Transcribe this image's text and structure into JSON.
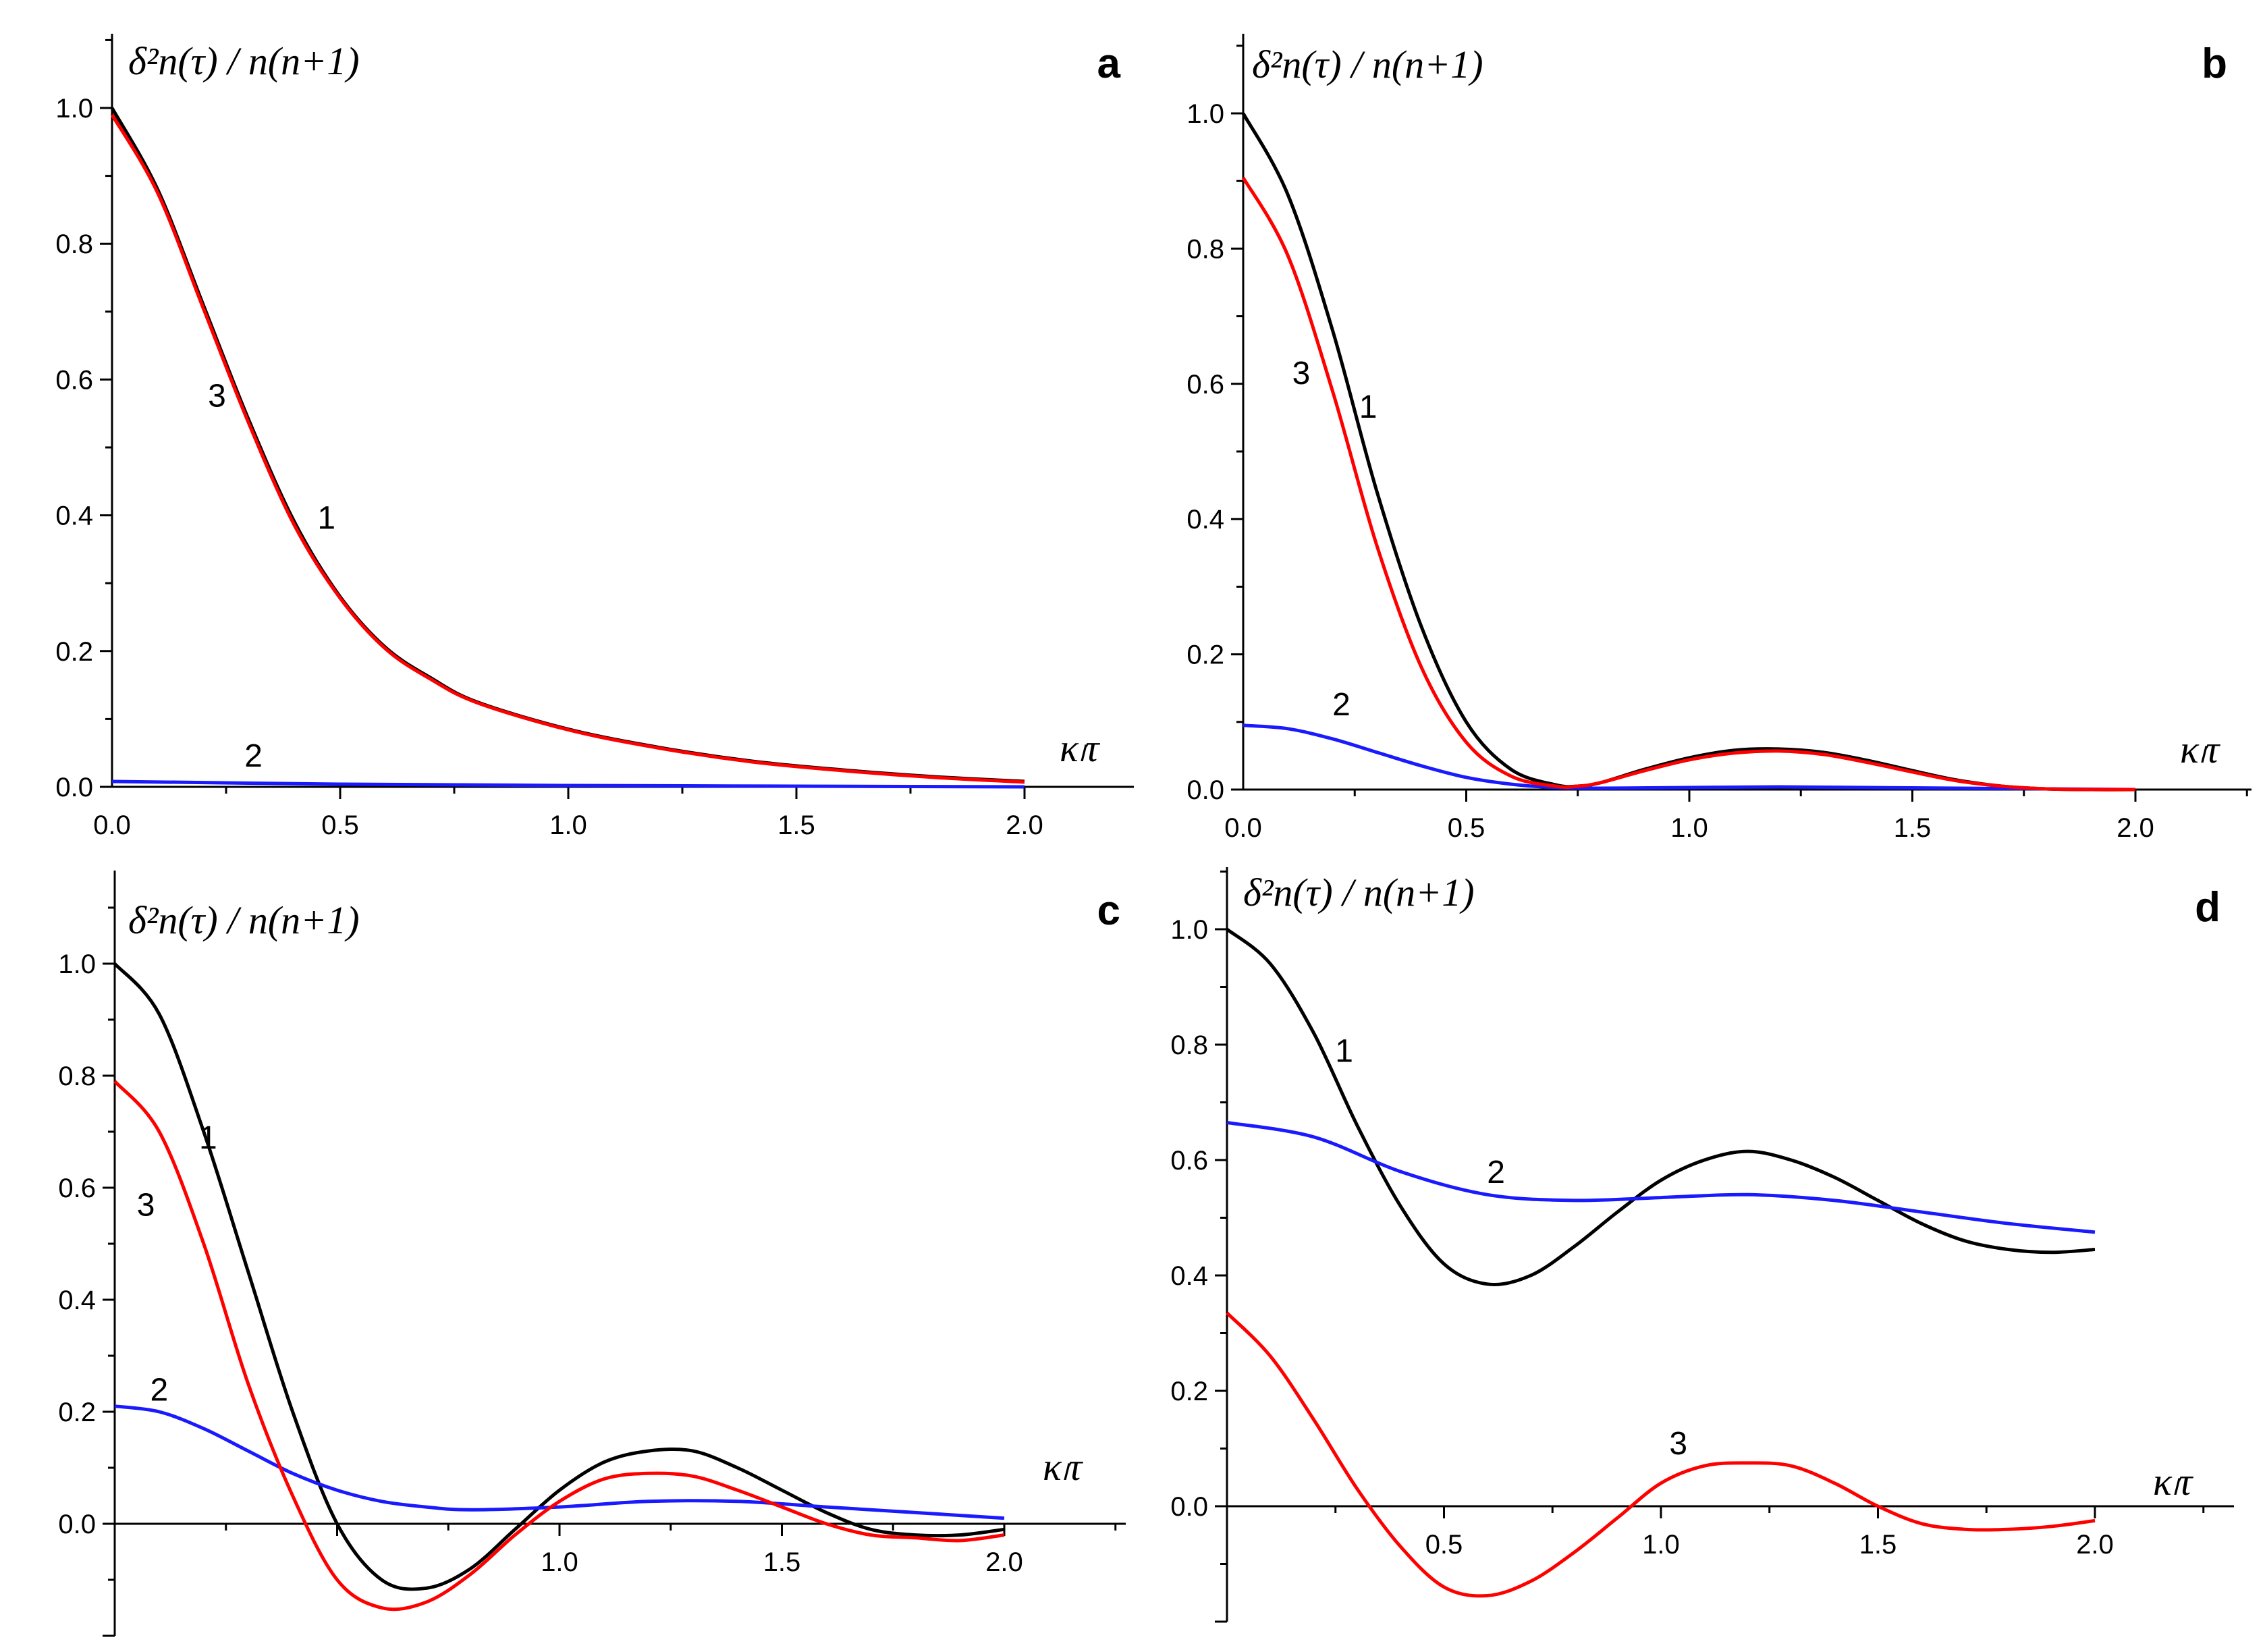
{
  "chart_data": [
    {
      "panel": "a",
      "type": "line",
      "ylabel": "δ²n(τ) / n(n+1)",
      "xlabel": "κₗτ",
      "xlim": [
        0,
        2.2
      ],
      "ylim": [
        0,
        1.1
      ],
      "x_ticks": [
        "0.0",
        "0.5",
        "1.0",
        "1.5",
        "2.0"
      ],
      "y_ticks": [
        "0.0",
        "0.2",
        "0.4",
        "0.6",
        "0.8",
        "1.0"
      ],
      "colors": {
        "1": "#000000",
        "2": "#1a1aff",
        "3": "#ff0000"
      },
      "series": [
        {
          "name": "1",
          "x": [
            0,
            0.1,
            0.2,
            0.3,
            0.4,
            0.5,
            0.6,
            0.7,
            0.8,
            1.0,
            1.2,
            1.4,
            1.6,
            1.8,
            2.0
          ],
          "values": [
            1.0,
            0.88,
            0.71,
            0.54,
            0.39,
            0.28,
            0.205,
            0.16,
            0.125,
            0.085,
            0.058,
            0.038,
            0.025,
            0.015,
            0.008
          ]
        },
        {
          "name": "2",
          "x": [
            0,
            0.5,
            1.0,
            1.5,
            2.0
          ],
          "values": [
            0.008,
            0.004,
            0.002,
            0.001,
            0.0
          ]
        },
        {
          "name": "3",
          "x": [
            0,
            0.1,
            0.2,
            0.3,
            0.4,
            0.5,
            0.6,
            0.7,
            0.8,
            1.0,
            1.2,
            1.4,
            1.6,
            1.8,
            2.0
          ],
          "values": [
            0.99,
            0.875,
            0.705,
            0.535,
            0.385,
            0.278,
            0.203,
            0.158,
            0.124,
            0.084,
            0.057,
            0.037,
            0.024,
            0.014,
            0.007
          ]
        }
      ],
      "curve_labels": [
        {
          "text": "3",
          "x": 0.23,
          "y": 0.56
        },
        {
          "text": "1",
          "x": 0.47,
          "y": 0.38
        },
        {
          "text": "2",
          "x": 0.31,
          "y": 0.03
        }
      ]
    },
    {
      "panel": "b",
      "type": "line",
      "ylabel": "δ²n(τ) / n(n+1)",
      "xlabel": "κₗτ",
      "xlim": [
        0,
        2.2
      ],
      "ylim": [
        0,
        1.1
      ],
      "x_ticks": [
        "0.0",
        "0.5",
        "1.0",
        "1.5",
        "2.0"
      ],
      "y_ticks": [
        "0.0",
        "0.2",
        "0.4",
        "0.6",
        "0.8",
        "1.0"
      ],
      "colors": {
        "1": "#000000",
        "2": "#1a1aff",
        "3": "#ff0000"
      },
      "series": [
        {
          "name": "1",
          "x": [
            0,
            0.1,
            0.2,
            0.3,
            0.4,
            0.5,
            0.6,
            0.7,
            0.75,
            0.8,
            0.9,
            1.0,
            1.1,
            1.2,
            1.3,
            1.4,
            1.5,
            1.6,
            1.7,
            1.8,
            1.9,
            2.0
          ],
          "values": [
            1.0,
            0.88,
            0.68,
            0.44,
            0.24,
            0.1,
            0.03,
            0.007,
            0.005,
            0.01,
            0.03,
            0.047,
            0.058,
            0.06,
            0.055,
            0.043,
            0.028,
            0.014,
            0.005,
            0.001,
            0.0,
            0.0
          ]
        },
        {
          "name": "2",
          "x": [
            0,
            0.1,
            0.2,
            0.3,
            0.4,
            0.5,
            0.6,
            0.7,
            0.8,
            1.0,
            1.2,
            1.4,
            1.6,
            1.8,
            2.0
          ],
          "values": [
            0.095,
            0.09,
            0.075,
            0.055,
            0.035,
            0.018,
            0.008,
            0.003,
            0.002,
            0.003,
            0.004,
            0.003,
            0.002,
            0.001,
            0.0
          ]
        },
        {
          "name": "3",
          "x": [
            0,
            0.1,
            0.2,
            0.3,
            0.4,
            0.5,
            0.6,
            0.7,
            0.75,
            0.8,
            0.9,
            1.0,
            1.1,
            1.2,
            1.3,
            1.4,
            1.5,
            1.6,
            1.7,
            1.8,
            1.9,
            2.0
          ],
          "values": [
            0.905,
            0.79,
            0.59,
            0.36,
            0.18,
            0.07,
            0.02,
            0.005,
            0.005,
            0.01,
            0.028,
            0.044,
            0.054,
            0.057,
            0.052,
            0.04,
            0.026,
            0.013,
            0.005,
            0.001,
            0.0,
            0.0
          ]
        }
      ],
      "curve_labels": [
        {
          "text": "3",
          "x": 0.13,
          "y": 0.6
        },
        {
          "text": "1",
          "x": 0.28,
          "y": 0.55
        },
        {
          "text": "2",
          "x": 0.22,
          "y": 0.11
        }
      ]
    },
    {
      "panel": "c",
      "type": "line",
      "ylabel": "δ²n(τ) / n(n+1)",
      "xlabel": "κₗτ",
      "xlim": [
        0,
        2.25
      ],
      "ylim": [
        -0.2,
        1.1
      ],
      "x_ticks": [
        "1.0",
        "1.5",
        "2.0"
      ],
      "x_tick_values": [
        1.0,
        1.5,
        2.0
      ],
      "y_ticks": [
        "0.0",
        "0.2",
        "0.4",
        "0.6",
        "0.8",
        "1.0"
      ],
      "colors": {
        "1": "#000000",
        "2": "#1a1aff",
        "3": "#ff0000"
      },
      "series": [
        {
          "name": "1",
          "x": [
            0,
            0.1,
            0.2,
            0.3,
            0.4,
            0.5,
            0.6,
            0.7,
            0.8,
            0.9,
            1.0,
            1.1,
            1.2,
            1.3,
            1.4,
            1.5,
            1.6,
            1.7,
            1.8,
            1.9,
            2.0
          ],
          "values": [
            1.0,
            0.91,
            0.7,
            0.45,
            0.2,
            0.0,
            -0.1,
            -0.115,
            -0.08,
            -0.01,
            0.06,
            0.11,
            0.13,
            0.13,
            0.1,
            0.06,
            0.02,
            -0.01,
            -0.02,
            -0.02,
            -0.01
          ]
        },
        {
          "name": "2",
          "x": [
            0,
            0.1,
            0.2,
            0.3,
            0.4,
            0.5,
            0.6,
            0.7,
            0.8,
            1.0,
            1.2,
            1.4,
            1.6,
            1.8,
            2.0
          ],
          "values": [
            0.21,
            0.2,
            0.17,
            0.13,
            0.09,
            0.06,
            0.04,
            0.03,
            0.025,
            0.03,
            0.04,
            0.04,
            0.03,
            0.02,
            0.01
          ]
        },
        {
          "name": "3",
          "x": [
            0,
            0.1,
            0.2,
            0.3,
            0.4,
            0.5,
            0.6,
            0.7,
            0.8,
            0.9,
            1.0,
            1.1,
            1.2,
            1.3,
            1.4,
            1.5,
            1.6,
            1.7,
            1.8,
            1.9,
            2.0
          ],
          "values": [
            0.79,
            0.7,
            0.5,
            0.25,
            0.05,
            -0.1,
            -0.15,
            -0.14,
            -0.09,
            -0.02,
            0.04,
            0.08,
            0.09,
            0.085,
            0.06,
            0.03,
            0.0,
            -0.02,
            -0.025,
            -0.03,
            -0.02
          ]
        }
      ],
      "curve_labels": [
        {
          "text": "1",
          "x": 0.21,
          "y": 0.67
        },
        {
          "text": "3",
          "x": 0.07,
          "y": 0.55
        },
        {
          "text": "2",
          "x": 0.1,
          "y": 0.22
        }
      ]
    },
    {
      "panel": "d",
      "type": "line",
      "ylabel": "δ²n(τ) / n(n+1)",
      "xlabel": "κₗτ",
      "xlim": [
        0,
        2.3
      ],
      "ylim": [
        -0.2,
        1.1
      ],
      "x_ticks": [
        "0.5",
        "1.0",
        "1.5",
        "2.0"
      ],
      "x_tick_values": [
        0.5,
        1.0,
        1.5,
        2.0
      ],
      "y_ticks": [
        "0.0",
        "0.2",
        "0.4",
        "0.6",
        "0.8",
        "1.0"
      ],
      "colors": {
        "1": "#000000",
        "2": "#1a1aff",
        "3": "#ff0000"
      },
      "series": [
        {
          "name": "1",
          "x": [
            0,
            0.1,
            0.2,
            0.3,
            0.4,
            0.5,
            0.6,
            0.7,
            0.8,
            0.9,
            1.0,
            1.1,
            1.2,
            1.3,
            1.4,
            1.5,
            1.6,
            1.7,
            1.8,
            1.9,
            2.0
          ],
          "values": [
            1.0,
            0.94,
            0.82,
            0.66,
            0.52,
            0.42,
            0.385,
            0.4,
            0.45,
            0.51,
            0.565,
            0.6,
            0.615,
            0.6,
            0.57,
            0.53,
            0.49,
            0.46,
            0.445,
            0.44,
            0.445
          ]
        },
        {
          "name": "2",
          "x": [
            0,
            0.2,
            0.4,
            0.6,
            0.8,
            1.0,
            1.2,
            1.4,
            1.6,
            1.8,
            2.0
          ],
          "values": [
            0.665,
            0.64,
            0.58,
            0.54,
            0.53,
            0.535,
            0.54,
            0.53,
            0.51,
            0.49,
            0.475
          ]
        },
        {
          "name": "3",
          "x": [
            0,
            0.1,
            0.2,
            0.3,
            0.4,
            0.5,
            0.6,
            0.7,
            0.8,
            0.9,
            1.0,
            1.1,
            1.2,
            1.3,
            1.4,
            1.5,
            1.6,
            1.7,
            1.8,
            1.9,
            2.0
          ],
          "values": [
            0.335,
            0.26,
            0.15,
            0.03,
            -0.07,
            -0.14,
            -0.155,
            -0.13,
            -0.08,
            -0.02,
            0.04,
            0.07,
            0.075,
            0.07,
            0.04,
            0.0,
            -0.03,
            -0.04,
            -0.04,
            -0.035,
            -0.025
          ]
        }
      ],
      "curve_labels": [
        {
          "text": "1",
          "x": 0.27,
          "y": 0.77
        },
        {
          "text": "2",
          "x": 0.62,
          "y": 0.56
        },
        {
          "text": "3",
          "x": 1.04,
          "y": 0.09
        }
      ]
    }
  ]
}
